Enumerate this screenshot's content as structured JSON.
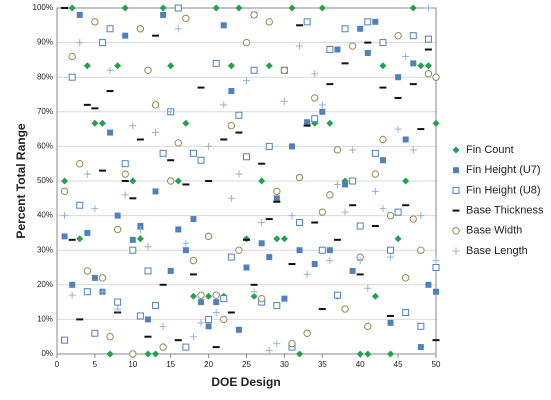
{
  "chart_data": {
    "type": "scatter",
    "xlabel": "DOE Design",
    "ylabel": "Percent Total Range",
    "xlim": [
      0,
      50
    ],
    "ylim": [
      0,
      100
    ],
    "xticks": [
      0,
      5,
      10,
      15,
      20,
      25,
      30,
      35,
      40,
      45,
      50
    ],
    "yticks": [
      {
        "value": 0,
        "label": "0%"
      },
      {
        "value": 10,
        "label": "10%"
      },
      {
        "value": 20,
        "label": "20%"
      },
      {
        "value": 30,
        "label": "30%"
      },
      {
        "value": 40,
        "label": "40%"
      },
      {
        "value": 50,
        "label": "50%"
      },
      {
        "value": 60,
        "label": "60%"
      },
      {
        "value": 70,
        "label": "70%"
      },
      {
        "value": 80,
        "label": "80%"
      },
      {
        "value": 90,
        "label": "90%"
      },
      {
        "value": 100,
        "label": "100%"
      }
    ],
    "grid": true,
    "legend": "right",
    "x": [
      1,
      2,
      3,
      4,
      5,
      6,
      7,
      8,
      9,
      10,
      11,
      12,
      13,
      14,
      15,
      16,
      17,
      18,
      19,
      20,
      21,
      22,
      23,
      24,
      25,
      26,
      27,
      28,
      29,
      30,
      31,
      32,
      33,
      34,
      35,
      36,
      37,
      38,
      39,
      40,
      41,
      42,
      43,
      44,
      45,
      46,
      47,
      48,
      49,
      50
    ],
    "series": [
      {
        "name": "Fin Count",
        "color": "#23a050",
        "marker": "diamond",
        "values": [
          50,
          100,
          33.3,
          83.3,
          66.7,
          66.7,
          0,
          83.3,
          100,
          50,
          33.3,
          0,
          0,
          100,
          83.3,
          50,
          66.7,
          16.7,
          16.7,
          16.7,
          100,
          16.7,
          83.3,
          100,
          33.3,
          16.7,
          50,
          83.3,
          33.3,
          33.3,
          100,
          0,
          66.7,
          66.7,
          100,
          66.7,
          16.7,
          50,
          50,
          0,
          0,
          16.7,
          83.3,
          0,
          33.3,
          50,
          100,
          83.3,
          83.3,
          66.7
        ]
      },
      {
        "name": "Fin Height (U7)",
        "color": "#4f81bd",
        "marker": "square",
        "values": [
          34,
          20,
          98,
          35,
          22,
          18,
          64,
          40,
          92,
          33,
          37,
          10,
          47,
          98,
          24,
          36,
          30,
          39,
          15,
          8,
          15,
          95,
          76,
          7,
          25,
          98,
          32,
          28,
          45,
          16,
          60,
          30,
          67,
          26,
          70,
          30,
          88,
          49,
          24,
          94,
          87,
          96,
          56,
          9,
          80,
          62,
          84,
          2,
          20,
          18
        ]
      },
      {
        "name": "Fin Height (U8)",
        "color": "#4f81bd",
        "marker": "open-square",
        "values": [
          4,
          80,
          43,
          18,
          6,
          90,
          94,
          15,
          55,
          30,
          11,
          24,
          14,
          58,
          70,
          100,
          2,
          58,
          56,
          10,
          84,
          16,
          28,
          69,
          57,
          82,
          15,
          60,
          14,
          82,
          2,
          38,
          96,
          68,
          30,
          88,
          17,
          94,
          50,
          37,
          96,
          58,
          90,
          30,
          41,
          12,
          92,
          8,
          91,
          25
        ]
      },
      {
        "name": "Base Thickness",
        "color": "#111111",
        "marker": "dash",
        "values": [
          100,
          33,
          10,
          72,
          71,
          53,
          76,
          12,
          50,
          45,
          62,
          5,
          92,
          20,
          56,
          4,
          49,
          23,
          77,
          50,
          2,
          62,
          12,
          64,
          33,
          20,
          55,
          39,
          44,
          82,
          26,
          95,
          66,
          38,
          13,
          78,
          33,
          84,
          43,
          23,
          90,
          37,
          77,
          11,
          74,
          43,
          78,
          65,
          88,
          4
        ]
      },
      {
        "name": "Base Width",
        "color": "#948a54",
        "marker": "circle",
        "values": [
          47,
          86,
          55,
          24,
          96,
          22,
          5,
          36,
          52,
          0,
          94,
          82,
          72,
          2,
          50,
          61,
          97,
          27,
          17,
          34,
          17,
          10,
          66,
          30,
          90,
          98,
          16,
          96,
          47,
          82,
          3,
          51,
          6,
          74,
          41,
          46,
          59,
          13,
          89,
          28,
          8,
          52,
          62,
          40,
          92,
          22,
          39,
          30,
          81,
          80
        ]
      },
      {
        "name": "Base Length",
        "color": "#95b3d7",
        "marker": "plus",
        "values": [
          40,
          17,
          90,
          52,
          42,
          18,
          82,
          13,
          46,
          66,
          36,
          31,
          64,
          8,
          70,
          94,
          32,
          5,
          9,
          60,
          12,
          72,
          45,
          52,
          79,
          18,
          38,
          1,
          3,
          73,
          40,
          89,
          23,
          81,
          72,
          27,
          49,
          41,
          59,
          27,
          19,
          47,
          42,
          28,
          65,
          86,
          59,
          40,
          100,
          27
        ]
      }
    ]
  }
}
